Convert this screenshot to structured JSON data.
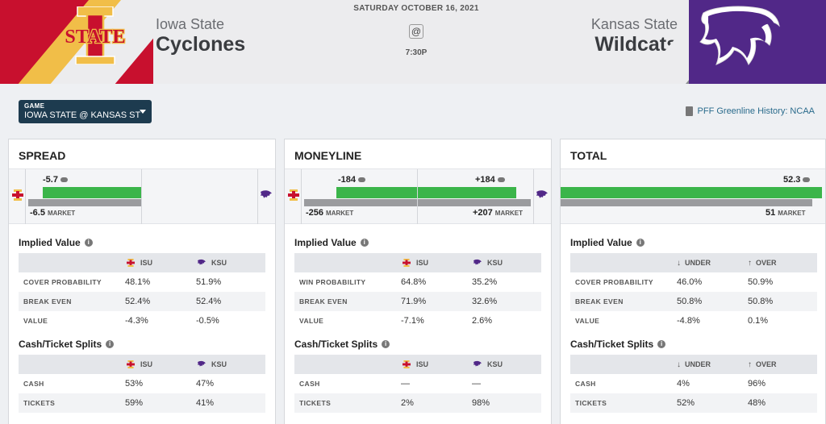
{
  "colors": {
    "isu_red": "#c8102e",
    "isu_gold": "#f1be48",
    "ksu_purple": "#512888",
    "bar_green": "#3bb54a",
    "bar_gray": "#9a9b9e",
    "select_bg": "#1d3b4f",
    "link": "#2a6b8c"
  },
  "header": {
    "away": {
      "location": "Iowa State",
      "name": "Cyclones",
      "logo_text": "STATE",
      "logo_letter": "I"
    },
    "home": {
      "location": "Kansas State",
      "name": "Wildcats"
    },
    "date": "SATURDAY OCTOBER 16, 2021",
    "at": "@",
    "time": "7:30P"
  },
  "toolbar": {
    "game_label": "GAME",
    "game_value": "IOWA STATE @ KANSAS ST",
    "greenline_link": "PFF Greenline History: NCAA",
    "icons": [
      "caret-down-icon",
      "document-icon"
    ]
  },
  "spread": {
    "title": "SPREAD",
    "greenline": "-5.7",
    "market": "-6.5",
    "market_label": "MARKET",
    "implied_title": "Implied Value",
    "cols": [
      "ISU",
      "KSU"
    ],
    "rows": [
      {
        "label": "COVER PROBABILITY",
        "a": "48.1%",
        "b": "51.9%"
      },
      {
        "label": "BREAK EVEN",
        "a": "52.4%",
        "b": "52.4%"
      },
      {
        "label": "VALUE",
        "a": "-4.3%",
        "b": "-0.5%"
      }
    ],
    "splits_title": "Cash/Ticket Splits",
    "split_rows": [
      {
        "label": "CASH",
        "a": "53%",
        "b": "47%"
      },
      {
        "label": "TICKETS",
        "a": "59%",
        "b": "41%"
      }
    ]
  },
  "moneyline": {
    "title": "MONEYLINE",
    "greenline_a": "-184",
    "greenline_b": "+184",
    "market_a": "-256",
    "market_b": "+207",
    "market_label": "MARKET",
    "implied_title": "Implied Value",
    "cols": [
      "ISU",
      "KSU"
    ],
    "rows": [
      {
        "label": "WIN PROBABILITY",
        "a": "64.8%",
        "b": "35.2%"
      },
      {
        "label": "BREAK EVEN",
        "a": "71.9%",
        "b": "32.6%"
      },
      {
        "label": "VALUE",
        "a": "-7.1%",
        "b": "2.6%"
      }
    ],
    "splits_title": "Cash/Ticket Splits",
    "split_rows": [
      {
        "label": "CASH",
        "a": "—",
        "b": "—"
      },
      {
        "label": "TICKETS",
        "a": "2%",
        "b": "98%"
      }
    ]
  },
  "total": {
    "title": "TOTAL",
    "greenline": "52.3",
    "market": "51",
    "market_label": "MARKET",
    "implied_title": "Implied Value",
    "cols": [
      "UNDER",
      "OVER"
    ],
    "rows": [
      {
        "label": "COVER PROBABILITY",
        "a": "46.0%",
        "b": "50.9%"
      },
      {
        "label": "BREAK EVEN",
        "a": "50.8%",
        "b": "50.8%"
      },
      {
        "label": "VALUE",
        "a": "-4.8%",
        "b": "0.1%"
      }
    ],
    "splits_title": "Cash/Ticket Splits",
    "split_rows": [
      {
        "label": "CASH",
        "a": "4%",
        "b": "96%"
      },
      {
        "label": "TICKETS",
        "a": "52%",
        "b": "48%"
      }
    ]
  }
}
